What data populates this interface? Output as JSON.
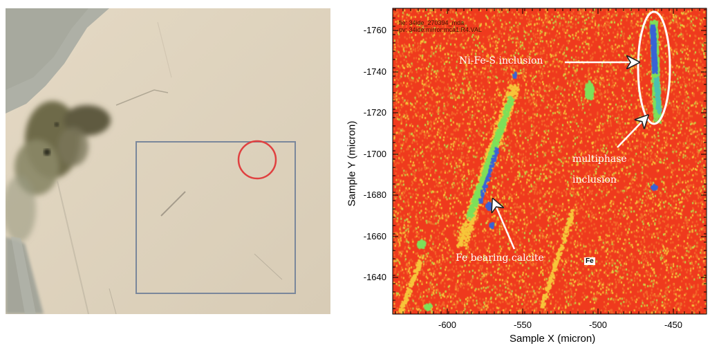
{
  "micrograph": {
    "colors": {
      "matrix": "#ddd1bd",
      "dark_inclusion": "#6b6648",
      "selection_box": "#7a879b",
      "marker": "#e04040"
    }
  },
  "map": {
    "header_line1": "fie: 34ide_270394_mda",
    "header_line2": "pv: 34ide:mirror:mca1:R4.VAL",
    "x_axis_title": "Sample X (micron)",
    "y_axis_title": "Sample Y (micron)",
    "x_ticks": [
      "-600",
      "-550",
      "-500",
      "-450"
    ],
    "y_ticks": [
      "-1760",
      "-1740",
      "-1720",
      "-1700",
      "-1680",
      "-1660",
      "-1640"
    ],
    "annotations": {
      "ni_fe_s": "Ni-Fe-S inclusion",
      "multiphase_line1": "multiphase",
      "multiphase_line2": "inclusion",
      "fe_calcite": "Fe bearing calcite",
      "fe_label": "Fe"
    },
    "colors": {
      "background": "#ef3a1d",
      "speckle": "#f7c63a",
      "vein_green": "#7ee05a",
      "vein_blue": "#3a63d6"
    }
  }
}
